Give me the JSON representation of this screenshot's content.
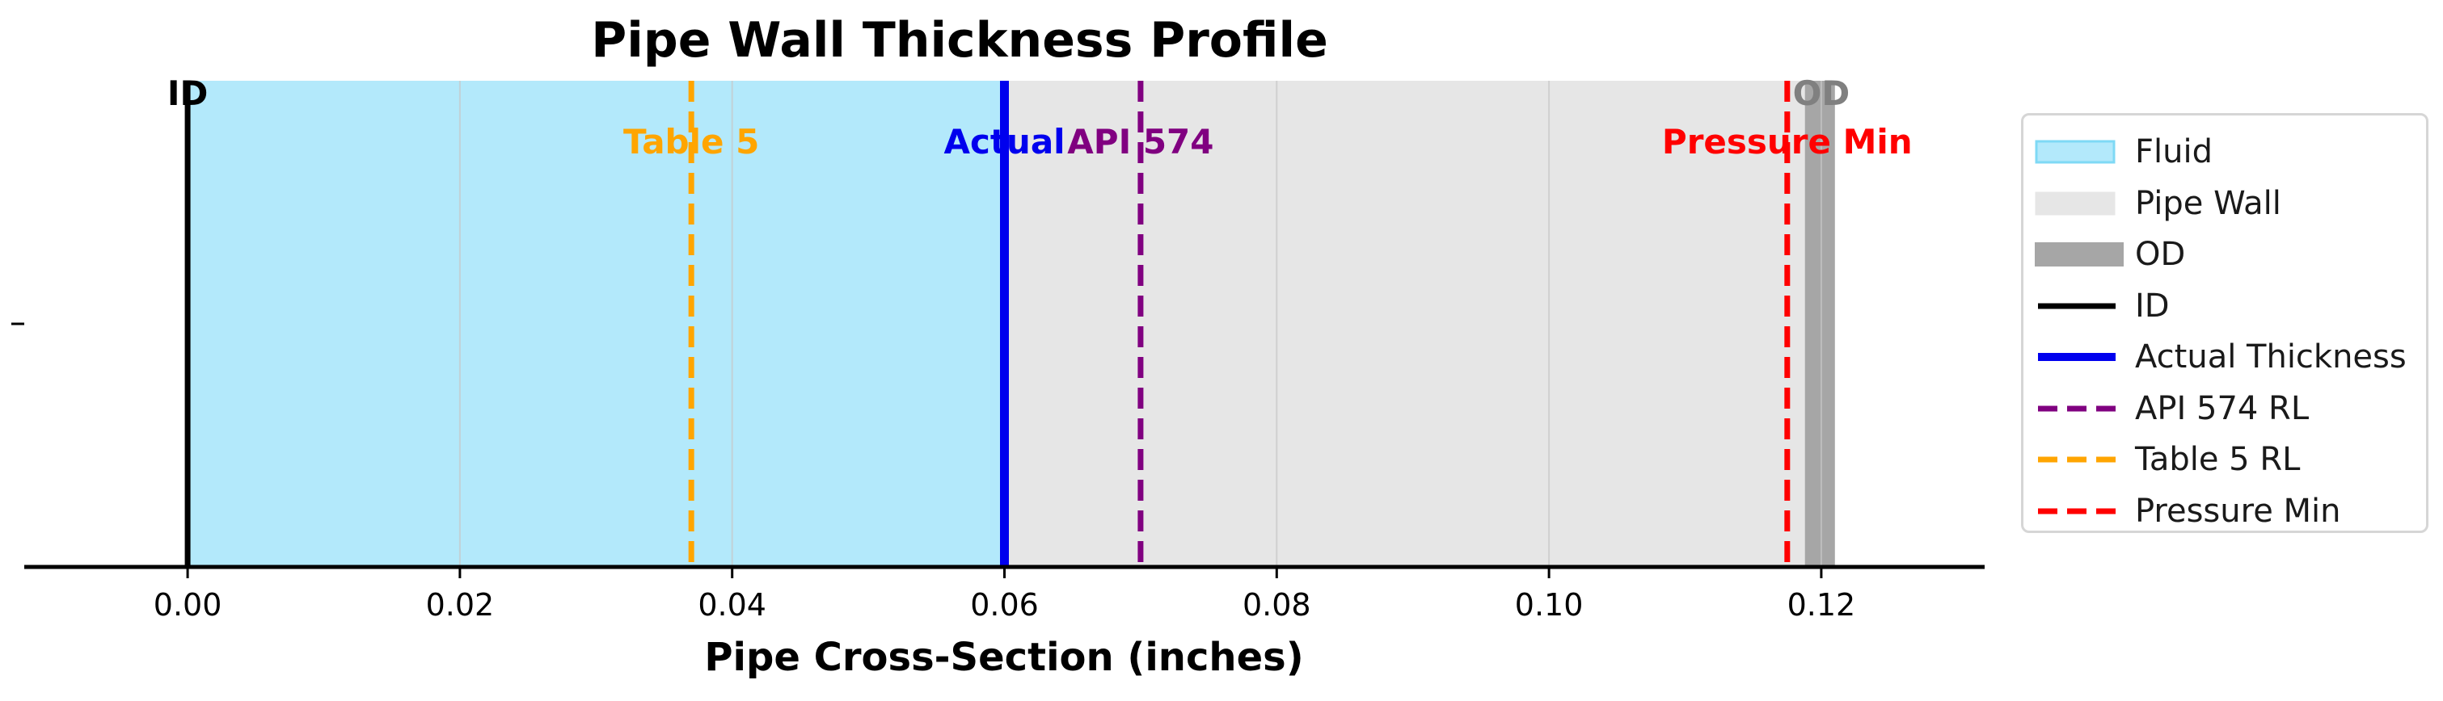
{
  "chart_data": {
    "type": "line",
    "title": "Pipe Wall Thickness Profile",
    "xlabel": "Pipe Cross-Section (inches)",
    "xlim": [
      -0.012,
      0.132
    ],
    "x_ticks": [
      "0.00",
      "0.02",
      "0.04",
      "0.06",
      "0.08",
      "0.10",
      "0.12"
    ],
    "x_tick_values": [
      0.0,
      0.02,
      0.04,
      0.06,
      0.08,
      0.1,
      0.12
    ],
    "y_ticks": [
      ""
    ],
    "grid": "vertical",
    "regions": [
      {
        "name": "Fluid",
        "x_start": 0.0,
        "x_end": 0.06,
        "color": "#b3e9fb"
      },
      {
        "name": "Pipe Wall",
        "x_start": 0.06,
        "x_end": 0.121,
        "color": "#e6e6e6"
      },
      {
        "name": "OD",
        "x_start": 0.1188,
        "x_end": 0.121,
        "color": "#a6a6a6"
      }
    ],
    "lines": [
      {
        "name": "ID",
        "x": 0.0,
        "color": "#000000",
        "style": "solid",
        "label": "ID"
      },
      {
        "name": "Actual Thickness",
        "x": 0.06,
        "color": "#0000ee",
        "style": "solid",
        "label": "Actual"
      },
      {
        "name": "API 574 RL",
        "x": 0.07,
        "color": "#800080",
        "style": "dashed",
        "label": "API 574"
      },
      {
        "name": "Table 5 RL",
        "x": 0.037,
        "color": "#ffa500",
        "style": "dashed",
        "label": "Table 5"
      },
      {
        "name": "Pressure Min",
        "x": 0.1175,
        "color": "#ff0000",
        "style": "dashed",
        "label": "Pressure Min"
      }
    ],
    "od_label": {
      "text": "OD",
      "x": 0.12,
      "color": "#808080"
    },
    "legend": {
      "position": "outside-right",
      "entries": [
        {
          "label": "Fluid",
          "kind": "patch",
          "color": "#b3e9fb",
          "edge": "#7fd9f5"
        },
        {
          "label": "Pipe Wall",
          "kind": "patch",
          "color": "#e6e6e6",
          "edge": "#e6e6e6"
        },
        {
          "label": "OD",
          "kind": "patch",
          "color": "#a6a6a6",
          "edge": "#a6a6a6"
        },
        {
          "label": "ID",
          "kind": "solid",
          "color": "#000000"
        },
        {
          "label": "Actual Thickness",
          "kind": "solid",
          "color": "#0000ee"
        },
        {
          "label": "API 574 RL",
          "kind": "dashed",
          "color": "#800080"
        },
        {
          "label": "Table 5 RL",
          "kind": "dashed",
          "color": "#ffa500"
        },
        {
          "label": "Pressure Min",
          "kind": "dashed",
          "color": "#ff0000"
        }
      ]
    }
  }
}
